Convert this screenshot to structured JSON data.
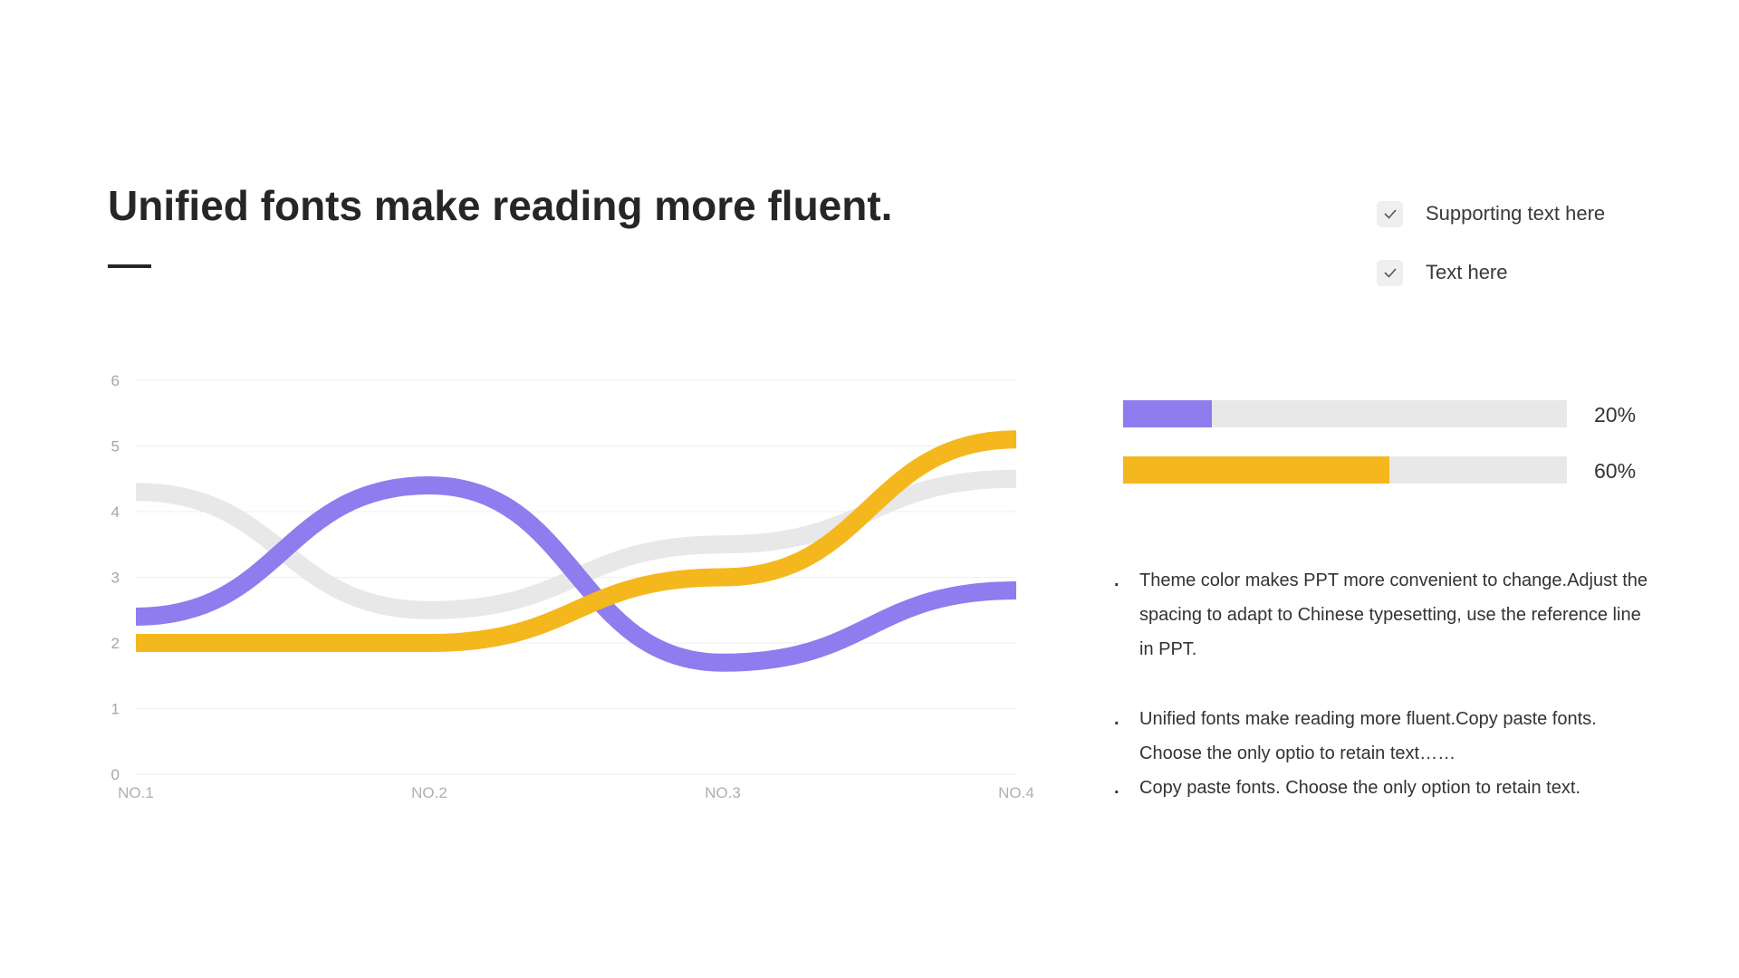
{
  "header": {
    "title": "Unified fonts make reading more fluent."
  },
  "checklist": [
    {
      "label": "Supporting text here",
      "icon": "check-icon"
    },
    {
      "label": "Text here",
      "icon": "check-icon"
    }
  ],
  "progress": [
    {
      "label": "20%",
      "value": 0.2,
      "color": "#8f7cee"
    },
    {
      "label": "60%",
      "value": 0.6,
      "color": "#f4b81e"
    }
  ],
  "bullets": [
    {
      "text": "Theme  color makes PPT more convenient to change.Adjust the spacing to adapt to Chinese typesetting, use the reference line in PPT."
    },
    {
      "text": "Unified fonts make reading more fluent.Copy paste fonts. Choose the only optio to retain text……"
    },
    {
      "text": "Copy paste  fonts. Choose the only option to retain text."
    }
  ],
  "bullet_marker": ".",
  "chart_data": {
    "type": "line",
    "categories": [
      "NO.1",
      "NO.2",
      "NO.3",
      "NO.4"
    ],
    "ylim": [
      0,
      6
    ],
    "yticks": [
      0,
      1,
      2,
      3,
      4,
      5,
      6
    ],
    "grid": true,
    "smooth": true,
    "series": [
      {
        "values": [
          4.3,
          2.5,
          3.5,
          4.5
        ],
        "color": "#e8e8e8"
      },
      {
        "values": [
          2.4,
          4.4,
          1.7,
          2.8
        ],
        "color": "#8f7cee"
      },
      {
        "values": [
          2.0,
          2.0,
          3.0,
          5.1
        ],
        "color": "#f4b81e"
      }
    ]
  }
}
